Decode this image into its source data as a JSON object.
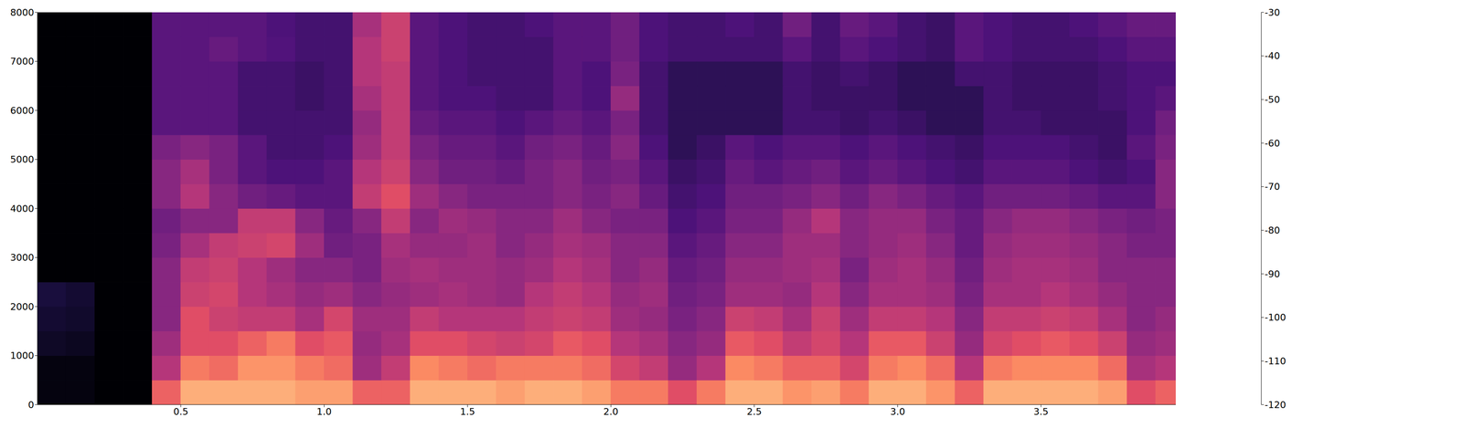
{
  "chart_data": {
    "type": "heatmap",
    "xlim": [
      0,
      3.97
    ],
    "xticks": [
      0.5,
      {
        "value": 1,
        "label": "1.0"
      },
      1.5,
      {
        "value": 2,
        "label": "2.0"
      },
      2.5,
      {
        "value": 3,
        "label": "3.0"
      },
      3.5
    ],
    "ylim": [
      0,
      8000
    ],
    "yticks": [
      0,
      1000,
      2000,
      3000,
      4000,
      5000,
      6000,
      7000,
      8000
    ],
    "colorbar_range": [
      -120,
      -30
    ],
    "colorbar_ticks": [
      -120,
      -110,
      -100,
      -90,
      -80,
      -70,
      -60,
      -50,
      -40,
      -30
    ],
    "x_edges": [
      0,
      0.1,
      0.2,
      0.3,
      0.4,
      0.5,
      0.6,
      0.7,
      0.8,
      0.9,
      1.0,
      1.1,
      1.2,
      1.3,
      1.4,
      1.5,
      1.6,
      1.7,
      1.8,
      1.9,
      2.0,
      2.1,
      2.2,
      2.3,
      2.4,
      2.5,
      2.6,
      2.7,
      2.8,
      2.9,
      3.0,
      3.1,
      3.2,
      3.3,
      3.4,
      3.5,
      3.6,
      3.7,
      3.8,
      3.9,
      3.97
    ],
    "y_edges": [
      0,
      500,
      1000,
      1500,
      2000,
      2500,
      3000,
      3500,
      4000,
      4500,
      5000,
      5500,
      6000,
      6500,
      7000,
      7500,
      8000
    ],
    "z": [
      [
        -118,
        -118,
        -114,
        -112,
        -110,
        -120,
        -120,
        -120,
        -120,
        -120,
        -120,
        -120,
        -120,
        -120,
        -120,
        -120
      ],
      [
        -118,
        -118,
        -115,
        -113,
        -112,
        -120,
        -120,
        -120,
        -120,
        -120,
        -120,
        -120,
        -120,
        -120,
        -120,
        -120
      ],
      [
        -120,
        -120,
        -120,
        -120,
        -120,
        -120,
        -120,
        -120,
        -120,
        -120,
        -120,
        -120,
        -120,
        -120,
        -120,
        -120
      ],
      [
        -120,
        -120,
        -120,
        -120,
        -120,
        -120,
        -120,
        -120,
        -120,
        -120,
        -120,
        -120,
        -120,
        -120,
        -120,
        -120
      ],
      [
        -60,
        -75,
        -80,
        -85,
        -85,
        -85,
        -88,
        -90,
        -85,
        -85,
        -88,
        -95,
        -95,
        -95,
        -95,
        -95
      ],
      [
        -45,
        -55,
        -65,
        -65,
        -70,
        -72,
        -78,
        -85,
        -75,
        -78,
        -85,
        -95,
        -95,
        -95,
        -95,
        -95
      ],
      [
        -45,
        -58,
        -65,
        -70,
        -68,
        -70,
        -72,
        -85,
        -85,
        -88,
        -88,
        -95,
        -95,
        -95,
        -92,
        -95
      ],
      [
        -45,
        -50,
        -60,
        -72,
        -75,
        -75,
        -70,
        -72,
        -90,
        -95,
        -95,
        -100,
        -100,
        -100,
        -95,
        -95
      ],
      [
        -45,
        -50,
        -55,
        -72,
        -78,
        -80,
        -68,
        -72,
        -92,
        -98,
        -100,
        -100,
        -100,
        -100,
        -97,
        -98
      ],
      [
        -48,
        -55,
        -65,
        -78,
        -82,
        -85,
        -80,
        -85,
        -95,
        -98,
        -100,
        -100,
        -102,
        -102,
        -100,
        -100
      ],
      [
        -48,
        -58,
        -62,
        -68,
        -80,
        -85,
        -90,
        -92,
        -95,
        -95,
        -98,
        -100,
        -100,
        -100,
        -100,
        -100
      ],
      [
        -60,
        -80,
        -82,
        -80,
        -85,
        -88,
        -88,
        -85,
        -72,
        -75,
        -80,
        -82,
        -78,
        -75,
        -75,
        -78
      ],
      [
        -60,
        -72,
        -78,
        -80,
        -82,
        -80,
        -78,
        -72,
        -65,
        -70,
        -72,
        -72,
        -72,
        -72,
        -70,
        -70
      ],
      [
        -45,
        -52,
        -65,
        -72,
        -80,
        -78,
        -82,
        -85,
        -80,
        -85,
        -88,
        -92,
        -95,
        -95,
        -95,
        -95
      ],
      [
        -45,
        -55,
        -65,
        -75,
        -78,
        -80,
        -82,
        -80,
        -85,
        -90,
        -92,
        -95,
        -98,
        -98,
        -98,
        -98
      ],
      [
        -45,
        -58,
        -68,
        -75,
        -80,
        -80,
        -80,
        -82,
        -88,
        -90,
        -92,
        -95,
        -98,
        -100,
        -100,
        -100
      ],
      [
        -48,
        -55,
        -70,
        -75,
        -82,
        -82,
        -85,
        -85,
        -88,
        -92,
        -95,
        -98,
        -100,
        -100,
        -100,
        -100
      ],
      [
        -45,
        -55,
        -68,
        -72,
        -75,
        -80,
        -82,
        -85,
        -88,
        -88,
        -90,
        -95,
        -100,
        -100,
        -100,
        -98
      ],
      [
        -45,
        -55,
        -62,
        -70,
        -72,
        -75,
        -78,
        -80,
        -85,
        -85,
        -88,
        -92,
        -95,
        -95,
        -95,
        -95
      ],
      [
        -48,
        -58,
        -65,
        -72,
        -75,
        -78,
        -80,
        -85,
        -88,
        -90,
        -92,
        -95,
        -98,
        -98,
        -95,
        -95
      ],
      [
        -55,
        -68,
        -75,
        -80,
        -82,
        -85,
        -85,
        -88,
        -85,
        -88,
        -85,
        -88,
        -82,
        -88,
        -90,
        -90
      ],
      [
        -55,
        -72,
        -78,
        -82,
        -80,
        -82,
        -85,
        -88,
        -92,
        -95,
        -98,
        -100,
        -100,
        -100,
        -98,
        -98
      ],
      [
        -65,
        -82,
        -85,
        -88,
        -90,
        -92,
        -95,
        -98,
        -100,
        -102,
        -105,
        -105,
        -105,
        -105,
        -100,
        -100
      ],
      [
        -55,
        -75,
        -82,
        -85,
        -88,
        -90,
        -92,
        -95,
        -98,
        -100,
        -102,
        -105,
        -105,
        -105,
        -100,
        -100
      ],
      [
        -45,
        -52,
        -62,
        -70,
        -80,
        -82,
        -85,
        -88,
        -90,
        -92,
        -95,
        -105,
        -105,
        -105,
        -100,
        -98
      ],
      [
        -45,
        -55,
        -65,
        -72,
        -80,
        -82,
        -85,
        -88,
        -90,
        -95,
        -98,
        -105,
        -105,
        -105,
        -100,
        -100
      ],
      [
        -50,
        -60,
        -72,
        -78,
        -82,
        -80,
        -80,
        -82,
        -88,
        -92,
        -95,
        -100,
        -100,
        -100,
        -95,
        -90
      ],
      [
        -48,
        -60,
        -68,
        -70,
        -75,
        -78,
        -80,
        -75,
        -85,
        -90,
        -95,
        -100,
        -102,
        -102,
        -100,
        -100
      ],
      [
        -55,
        -68,
        -75,
        -80,
        -85,
        -88,
        -85,
        -85,
        -90,
        -95,
        -98,
        -102,
        -102,
        -100,
        -95,
        -92
      ],
      [
        -45,
        -55,
        -62,
        -72,
        -78,
        -80,
        -82,
        -82,
        -85,
        -92,
        -95,
        -100,
        -102,
        -102,
        -98,
        -95
      ],
      [
        -45,
        -52,
        -62,
        -72,
        -78,
        -78,
        -80,
        -82,
        -88,
        -95,
        -98,
        -102,
        -105,
        -105,
        -100,
        -100
      ],
      [
        -50,
        -58,
        -70,
        -75,
        -80,
        -82,
        -85,
        -88,
        -92,
        -98,
        -100,
        -105,
        -105,
        -105,
        -102,
        -102
      ],
      [
        -60,
        -75,
        -82,
        -85,
        -88,
        -90,
        -92,
        -92,
        -95,
        -100,
        -102,
        -105,
        -105,
        -100,
        -95,
        -95
      ],
      [
        -45,
        -55,
        -68,
        -72,
        -78,
        -80,
        -82,
        -85,
        -90,
        -95,
        -98,
        -100,
        -100,
        -100,
        -98,
        -98
      ],
      [
        -45,
        -52,
        -65,
        -72,
        -78,
        -78,
        -80,
        -82,
        -90,
        -95,
        -98,
        -100,
        -102,
        -102,
        -100,
        -100
      ],
      [
        -45,
        -52,
        -62,
        -70,
        -75,
        -78,
        -80,
        -82,
        -90,
        -95,
        -98,
        -102,
        -102,
        -102,
        -100,
        -100
      ],
      [
        -45,
        -52,
        -65,
        -72,
        -78,
        -80,
        -82,
        -85,
        -92,
        -98,
        -100,
        -102,
        -102,
        -102,
        -100,
        -98
      ],
      [
        -48,
        -58,
        -70,
        -78,
        -82,
        -85,
        -85,
        -88,
        -95,
        -100,
        -102,
        -102,
        -100,
        -100,
        -98,
        -95
      ],
      [
        -65,
        -78,
        -82,
        -85,
        -85,
        -85,
        -88,
        -90,
        -95,
        -98,
        -95,
        -98,
        -98,
        -98,
        -95,
        -92
      ],
      [
        -60,
        -75,
        -80,
        -82,
        -85,
        -85,
        -88,
        -88,
        -85,
        -85,
        -88,
        -90,
        -95,
        -98,
        -95,
        -92
      ]
    ]
  }
}
